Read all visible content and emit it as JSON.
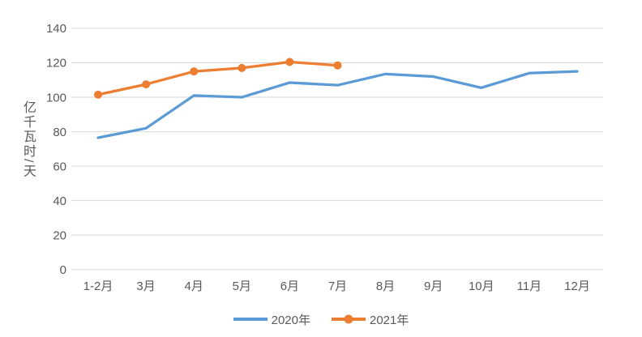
{
  "chart_data": {
    "type": "line",
    "title": "",
    "xlabel": "",
    "ylabel": "亿千瓦时/天",
    "ylim": [
      0,
      140
    ],
    "yticks": [
      0,
      20,
      40,
      60,
      80,
      100,
      120,
      140
    ],
    "grid": true,
    "legend_position": "bottom",
    "categories": [
      "1-2月",
      "3月",
      "4月",
      "5月",
      "6月",
      "7月",
      "8月",
      "9月",
      "10月",
      "11月",
      "12月"
    ],
    "series": [
      {
        "name": "2020年",
        "color": "#5B9BD5",
        "marker": "none",
        "values": [
          76.5,
          82,
          101,
          100,
          108.5,
          107,
          113.5,
          112,
          105.5,
          114,
          115
        ]
      },
      {
        "name": "2021年",
        "color": "#ED7D31",
        "marker": "circle",
        "values": [
          101.5,
          107.5,
          115,
          117,
          120.5,
          118.5,
          null,
          null,
          null,
          null,
          null
        ]
      }
    ]
  },
  "styles": {
    "grid_color": "#D9D9D9",
    "text_color": "#595959",
    "background": "#FFFFFF"
  }
}
